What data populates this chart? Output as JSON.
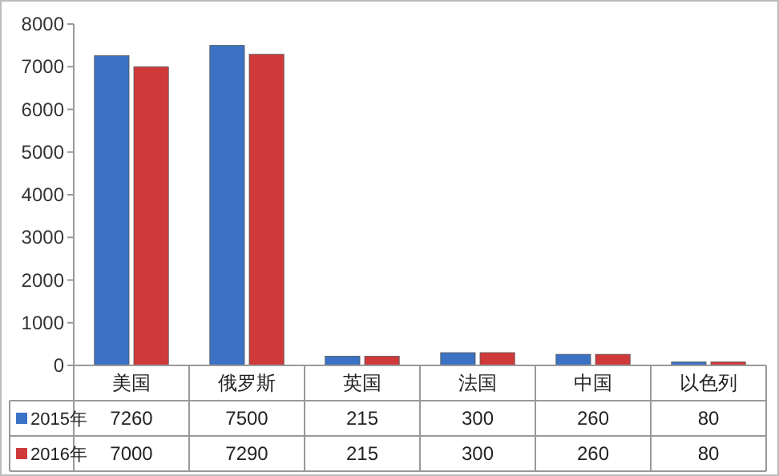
{
  "chart_data": {
    "type": "bar",
    "categories": [
      "美国",
      "俄罗斯",
      "英国",
      "法国",
      "中国",
      "以色列"
    ],
    "series": [
      {
        "name": "2015年",
        "color": "#3b72c4",
        "values": [
          7260,
          7500,
          215,
          300,
          260,
          80
        ]
      },
      {
        "name": "2016年",
        "color": "#d0393a",
        "values": [
          7000,
          7290,
          215,
          300,
          260,
          80
        ]
      }
    ],
    "ylim": [
      0,
      8000
    ],
    "yticks": [
      0,
      1000,
      2000,
      3000,
      4000,
      5000,
      6000,
      7000,
      8000
    ],
    "data_labels": true,
    "legend": "bottom",
    "grid": false
  }
}
